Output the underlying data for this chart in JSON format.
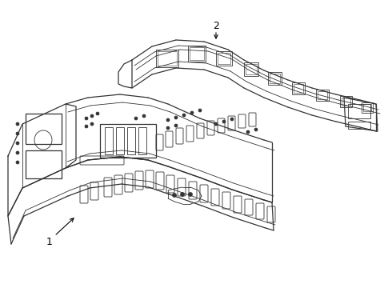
{
  "background_color": "#ffffff",
  "line_color": "#333333",
  "line_width": 0.9,
  "label_1": "1",
  "label_2": "2"
}
